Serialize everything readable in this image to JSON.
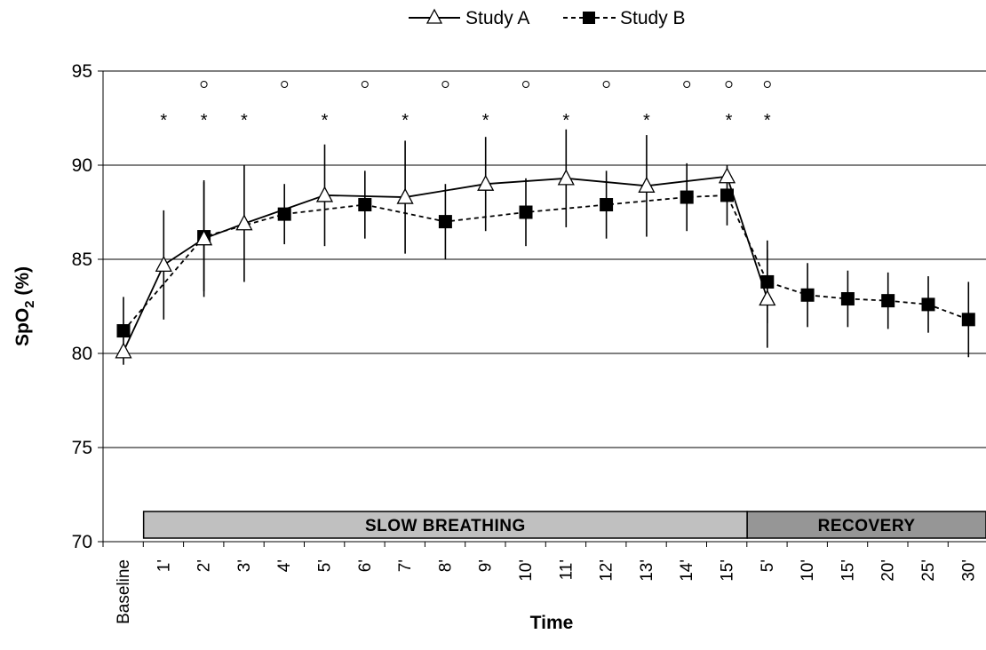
{
  "chart_data": {
    "type": "line",
    "xlabel": "Time",
    "ylabel": "SpO",
    "ylabel_sub": "2",
    "ylabel_unit": " (%)",
    "ylim": [
      70,
      95
    ],
    "yticks": [
      70,
      75,
      80,
      85,
      90,
      95
    ],
    "grid": true,
    "legend_position": "top-center",
    "categories": [
      "Baseline",
      "1'",
      "2'",
      "3'",
      "4'",
      "5'",
      "6'",
      "7'",
      "8'",
      "9'",
      "10'",
      "11'",
      "12'",
      "13'",
      "14'",
      "15'",
      "5'",
      "10'",
      "15'",
      "20'",
      "25'",
      "30'"
    ],
    "series": [
      {
        "name": "Study A",
        "line": "solid",
        "marker": "open-triangle",
        "values": [
          80.1,
          84.7,
          86.1,
          86.9,
          null,
          88.4,
          null,
          88.3,
          null,
          89.0,
          null,
          89.3,
          null,
          88.9,
          null,
          89.4,
          82.9,
          null,
          null,
          null,
          null,
          null
        ],
        "errors": [
          null,
          2.9,
          3.1,
          3.1,
          null,
          2.7,
          null,
          3.0,
          null,
          2.5,
          null,
          2.6,
          null,
          2.7,
          null,
          null,
          2.6,
          null,
          null,
          null,
          null,
          null
        ]
      },
      {
        "name": "Study B",
        "line": "dashed",
        "marker": "filled-square",
        "values": [
          81.2,
          null,
          86.2,
          null,
          87.4,
          null,
          87.9,
          null,
          87.0,
          null,
          87.5,
          null,
          87.9,
          null,
          88.3,
          88.4,
          83.8,
          83.1,
          82.9,
          82.8,
          82.6,
          81.8
        ],
        "errors": [
          1.8,
          null,
          2.9,
          null,
          1.6,
          null,
          1.8,
          null,
          2.0,
          null,
          1.8,
          null,
          1.8,
          null,
          1.8,
          1.6,
          2.2,
          1.7,
          1.5,
          1.5,
          1.5,
          2.0
        ]
      }
    ],
    "annotations": {
      "star_symbol": "*",
      "circle_symbol": "°",
      "star_categories": [
        1,
        2,
        3,
        5,
        7,
        9,
        11,
        13,
        15,
        16
      ],
      "circle_categories": [
        2,
        4,
        6,
        8,
        10,
        12,
        14,
        15,
        16
      ]
    },
    "phases": [
      {
        "label": "SLOW BREATHING",
        "from": 1,
        "to": 15,
        "color": "#c0c0c0"
      },
      {
        "label": "RECOVERY",
        "from": 16,
        "to": 21,
        "color": "#969696"
      }
    ]
  }
}
